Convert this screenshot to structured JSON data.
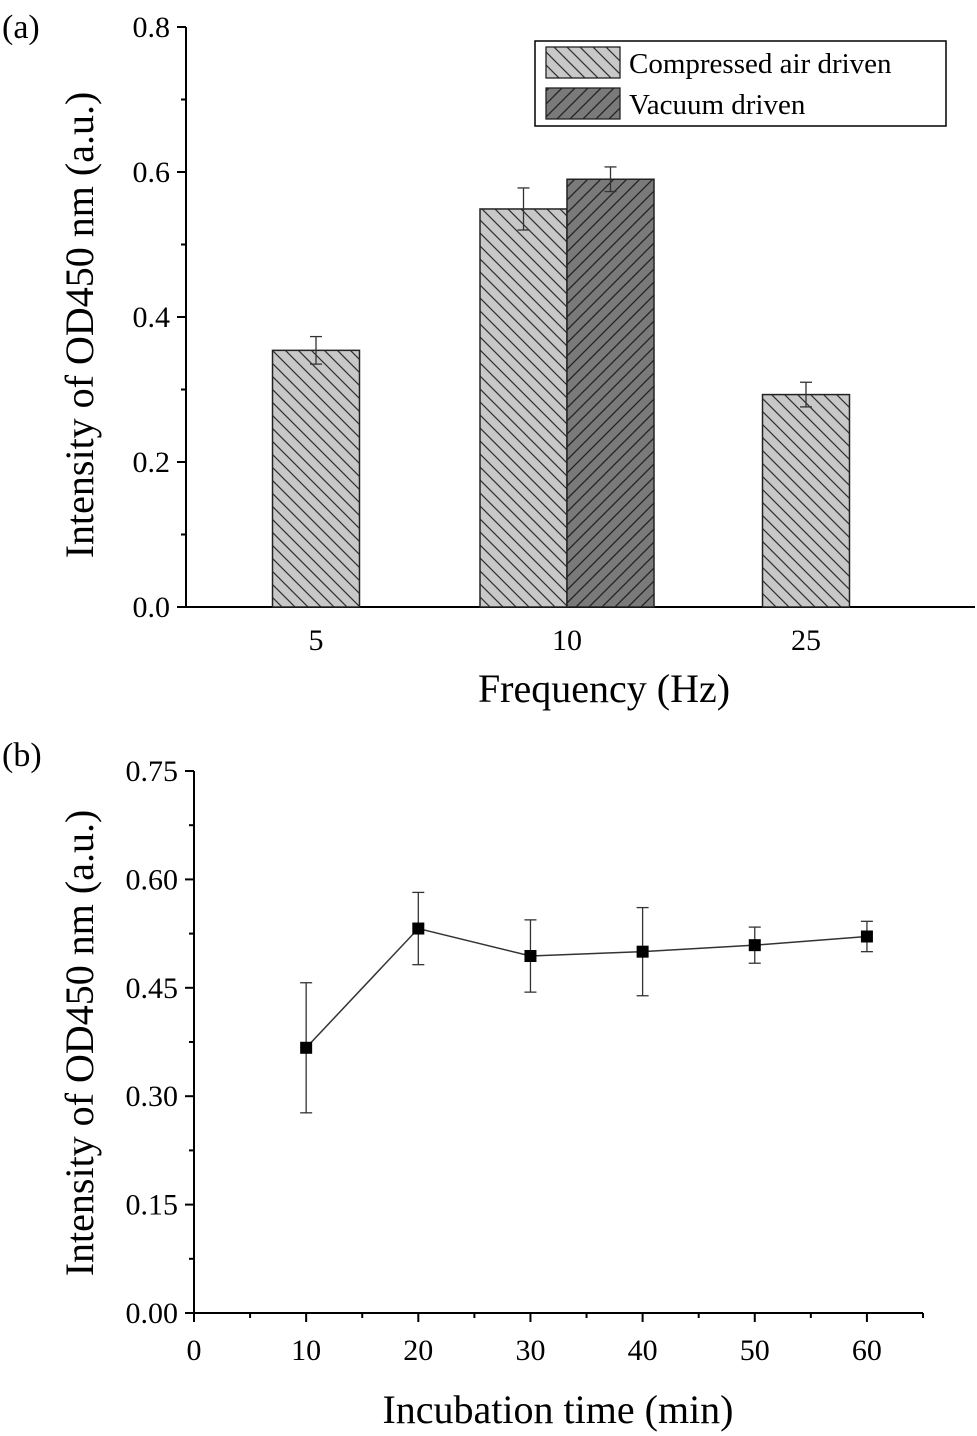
{
  "panel_a_label": "(a)",
  "panel_b_label": "(b)",
  "chart_data": [
    {
      "type": "bar",
      "panel": "(a)",
      "xlabel": "Frequency (Hz)",
      "ylabel": "Intensity of OD450 nm (a.u.)",
      "ylim": [
        0,
        0.8
      ],
      "yticks": [
        "0.0",
        "0.2",
        "0.4",
        "0.6",
        "0.8"
      ],
      "categories": [
        "5",
        "10",
        "25"
      ],
      "legend_position": "top-right",
      "series": [
        {
          "name": "Compressed air driven",
          "values": [
            0.354,
            0.549,
            0.293
          ],
          "errors": [
            0.019,
            0.029,
            0.017
          ],
          "color": "#c8c8c8"
        },
        {
          "name": "Vacuum driven",
          "values": [
            null,
            0.59,
            null
          ],
          "errors": [
            null,
            0.017,
            null
          ],
          "color": "#7a7a7a"
        }
      ]
    },
    {
      "type": "line",
      "panel": "(b)",
      "xlabel": "Incubation time (min)",
      "ylabel": "Intensity of OD450 nm (a.u.)",
      "xlim": [
        0,
        65
      ],
      "ylim": [
        0,
        0.75
      ],
      "xticks": [
        "0",
        "10",
        "20",
        "30",
        "40",
        "50",
        "60"
      ],
      "yticks": [
        "0.00",
        "0.15",
        "0.30",
        "0.45",
        "0.60",
        "0.75"
      ],
      "series": [
        {
          "x": [
            10,
            20,
            30,
            40,
            50,
            60
          ],
          "values": [
            0.367,
            0.532,
            0.494,
            0.5,
            0.509,
            0.521
          ],
          "errors": [
            0.09,
            0.05,
            0.05,
            0.061,
            0.025,
            0.021
          ],
          "marker": "square",
          "color": "#000000"
        }
      ]
    }
  ]
}
